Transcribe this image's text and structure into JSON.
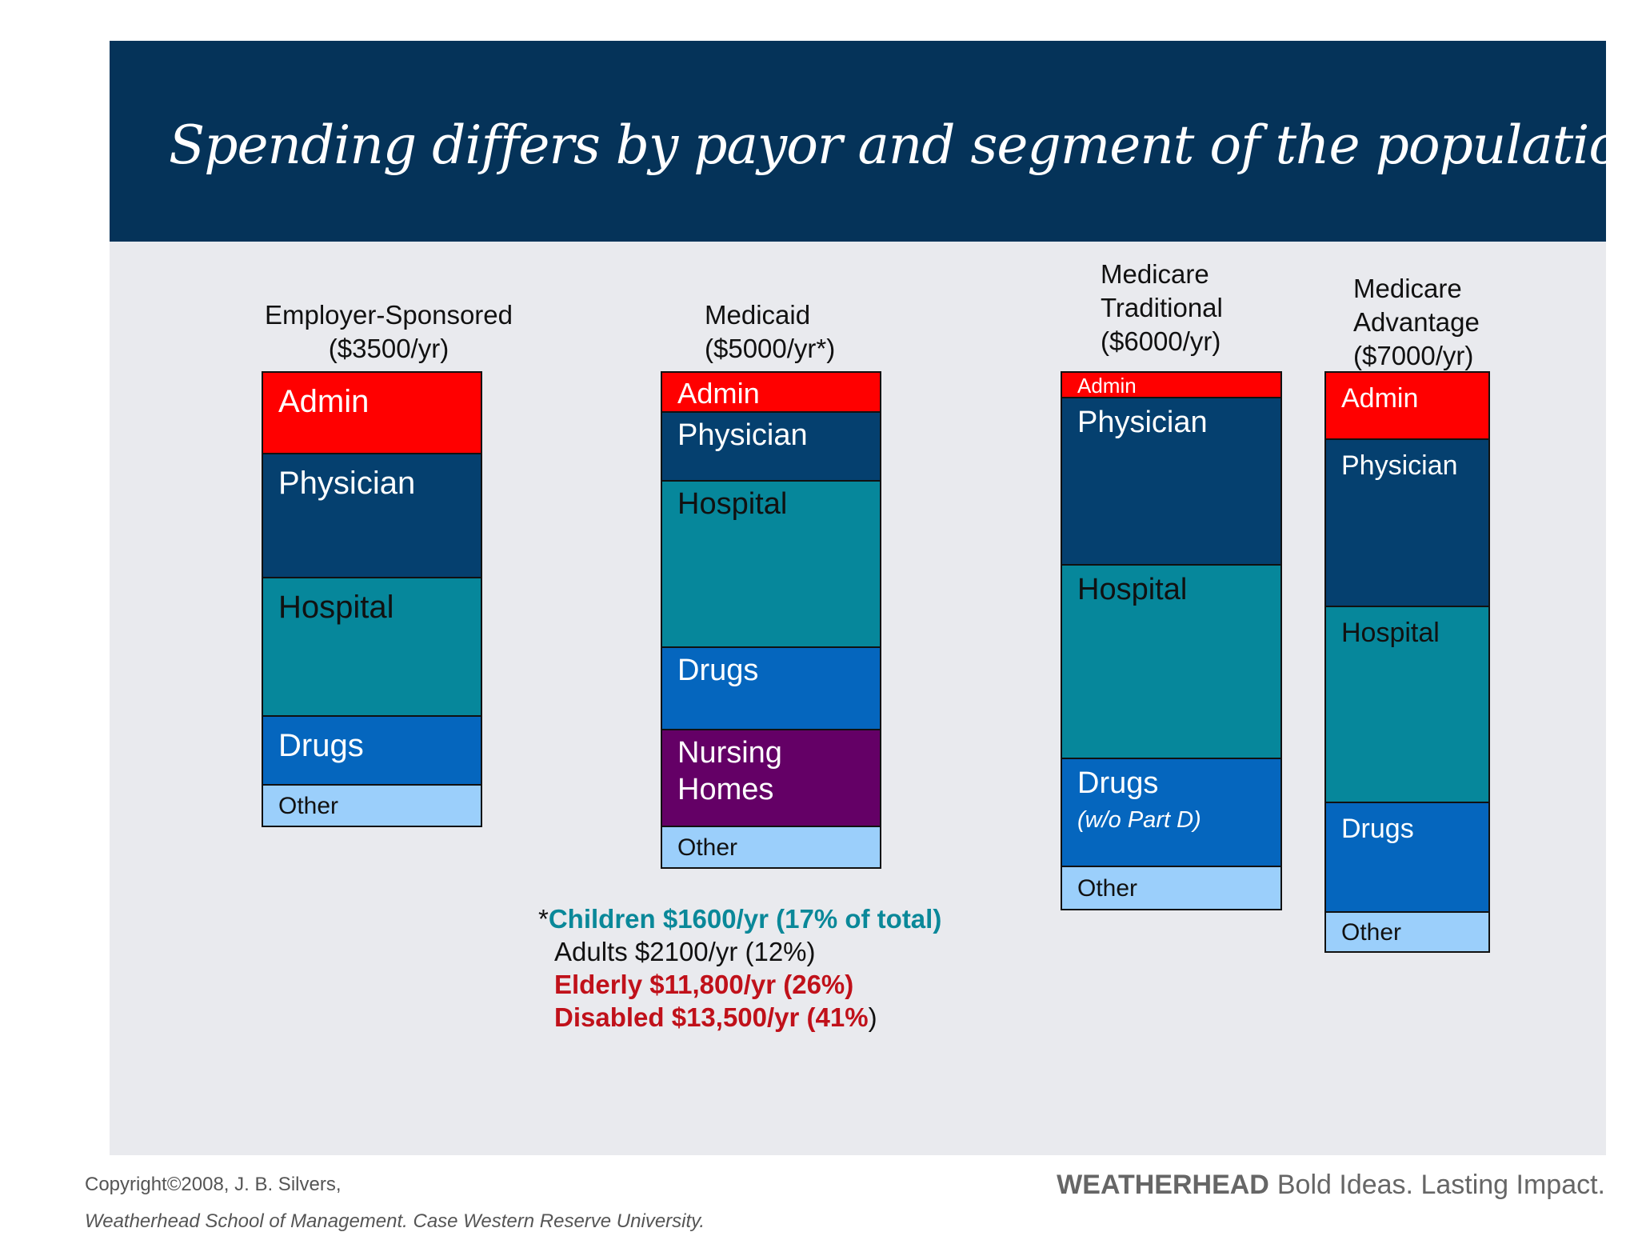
{
  "slide": {
    "title": "Spending differs by payor and segment of  the population"
  },
  "chart_data": {
    "type": "stacked-bar",
    "title": "Spending differs by payor and segment of  the population",
    "stacks": [
      {
        "title_lines": [
          "Employer-Sponsored",
          "($3500/yr)"
        ],
        "segments": [
          {
            "label": "Admin",
            "color": "#ff0000",
            "share": 0.18
          },
          {
            "label": "Physician",
            "color": "#05406f",
            "share": 0.27
          },
          {
            "label": "Hospital",
            "color": "#06879b",
            "share": 0.3
          },
          {
            "label": "Drugs",
            "color": "#0566be",
            "share": 0.15
          },
          {
            "label": "Other",
            "color": "#9bcffb",
            "share": 0.09
          }
        ]
      },
      {
        "title_lines": [
          "Medicaid",
          "($5000/yr*)"
        ],
        "segments": [
          {
            "label": "Admin",
            "color": "#ff0000",
            "share": 0.09
          },
          {
            "label": "Physician",
            "color": "#05406f",
            "share": 0.15
          },
          {
            "label": "Hospital",
            "color": "#06879b",
            "share": 0.36
          },
          {
            "label": "Drugs",
            "color": "#0566be",
            "share": 0.18
          },
          {
            "label": "Nursing Homes",
            "color": "#640066",
            "share": 0.21
          },
          {
            "label": "Other",
            "color": "#9bcffb",
            "share": 0.09
          }
        ]
      },
      {
        "title_lines": [
          "Medicare",
          "Traditional",
          "($6000/yr)"
        ],
        "segments": [
          {
            "label": "Admin",
            "color": "#ff0000",
            "share": 0.05
          },
          {
            "label": "Physician",
            "color": "#05406f",
            "share": 0.31
          },
          {
            "label": "Hospital",
            "color": "#06879b",
            "share": 0.36
          },
          {
            "label": "Drugs",
            "sub": "(w/o Part D)",
            "color": "#0566be",
            "share": 0.2
          },
          {
            "label": "Other",
            "color": "#9bcffb",
            "share": 0.08
          }
        ]
      },
      {
        "title_lines": [
          "Medicare",
          "Advantage",
          "($7000/yr)"
        ],
        "segments": [
          {
            "label": "Admin",
            "color": "#ff0000",
            "share": 0.12
          },
          {
            "label": "Physician",
            "color": "#05406f",
            "share": 0.29
          },
          {
            "label": "Hospital",
            "color": "#06879b",
            "share": 0.34
          },
          {
            "label": "Drugs",
            "color": "#0566be",
            "share": 0.19
          },
          {
            "label": "Other",
            "color": "#9bcffb",
            "share": 0.07
          }
        ]
      }
    ]
  },
  "note": {
    "star": "*",
    "children": "Children $1600/yr (17% of total)",
    "adults": "Adults $2100/yr  (12%)",
    "elderly": "Elderly $11,800/yr  (26%)",
    "disabled_main": "Disabled $13,500/yr  (41%",
    "disabled_paren": ")"
  },
  "footer": {
    "copyright_line1": "Copyright©2008, J. B. Silvers,",
    "copyright_line2": "Weatherhead School of Management.  Case Western Reserve University.",
    "brand_name": "WEATHERHEAD",
    "brand_tagline": "Bold Ideas. Lasting Impact."
  },
  "colors": {
    "header_bg": "#053359",
    "panel_bg": "#e9eaee",
    "children_teal": "#0a8899",
    "highlight_red": "#c0111a"
  }
}
